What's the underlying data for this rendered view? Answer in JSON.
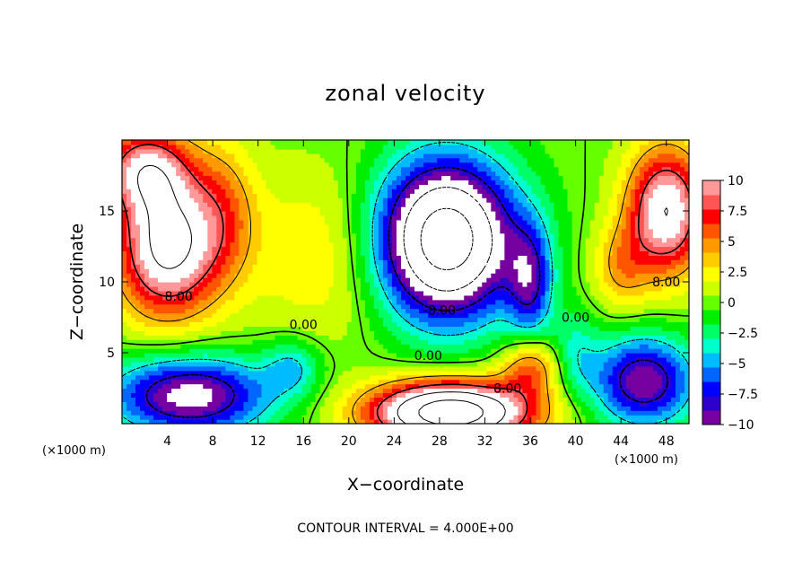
{
  "chart_data": {
    "type": "contour",
    "title": "zonal velocity",
    "xlabel": "X−coordinate",
    "ylabel": "Z−coordinate",
    "x_unit_label": "(×1000 m)",
    "xlim": [
      0,
      50
    ],
    "ylim": [
      0,
      20
    ],
    "x_ticks": [
      4,
      8,
      12,
      16,
      20,
      24,
      28,
      32,
      36,
      40,
      44,
      48
    ],
    "y_ticks": [
      5,
      10,
      15
    ],
    "colorbar": {
      "range": [
        -10,
        10
      ],
      "ticks": [
        "10",
        "7.5",
        "5",
        "2.5",
        "0",
        "−2.5",
        "−5",
        "−7.5",
        "−10"
      ],
      "colors": [
        "#7700a0",
        "#2d00cc",
        "#0000ff",
        "#0066ff",
        "#00bbff",
        "#00ffcc",
        "#00ff66",
        "#00ee00",
        "#66ff00",
        "#ccff00",
        "#ffff00",
        "#ffcc00",
        "#ff9900",
        "#ff5500",
        "#ff0000",
        "#ff5555",
        "#ff9999"
      ]
    },
    "contour_labels": [
      {
        "text": "8.00",
        "x": 5,
        "z": 9
      },
      {
        "text": "0.00",
        "x": 16,
        "z": 7
      },
      {
        "text": "0.00",
        "x": 27,
        "z": 4.8
      },
      {
        "text": "8.00",
        "x": 34,
        "z": 2.5
      },
      {
        "text": "-8.00",
        "x": 28,
        "z": 8
      },
      {
        "text": "0.00",
        "x": 40,
        "z": 7.5
      },
      {
        "text": "8.00",
        "x": 48,
        "z": 10
      }
    ],
    "features": [
      {
        "kind": "max",
        "x": 4,
        "z": 12,
        "value": 12
      },
      {
        "kind": "max",
        "x": 48,
        "z": 15,
        "value": 11
      },
      {
        "kind": "max",
        "x": 30,
        "z": 1,
        "value": 16
      },
      {
        "kind": "min",
        "x": 28,
        "z": 13,
        "value": -16
      },
      {
        "kind": "min",
        "x": 4,
        "z": 2,
        "value": -10
      },
      {
        "kind": "min",
        "x": 46,
        "z": 3,
        "value": -9
      }
    ],
    "footer": "CONTOUR INTERVAL = 4.000E+00"
  }
}
